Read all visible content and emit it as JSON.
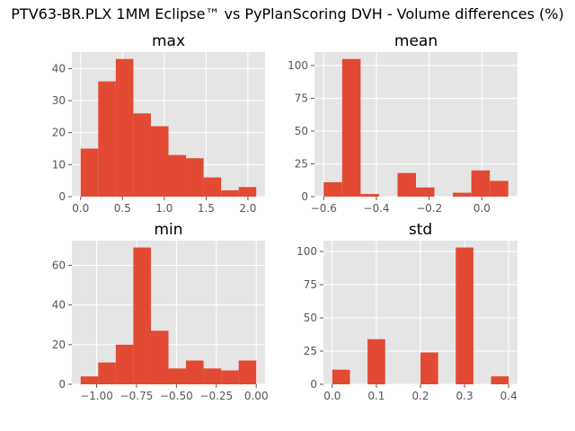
{
  "figure": {
    "suptitle": "PTV63-BR.PLX 1MM Eclipse™ vs PyPlanScoring DVH - Volume differences (%)"
  },
  "chart_data": [
    {
      "type": "bar",
      "title": "max",
      "bin_edges": [
        0.0,
        0.21,
        0.42,
        0.63,
        0.84,
        1.05,
        1.26,
        1.47,
        1.68,
        1.89,
        2.1
      ],
      "values": [
        15,
        36,
        43,
        26,
        22,
        13,
        12,
        6,
        2,
        3
      ],
      "xlim": [
        -0.105,
        2.205
      ],
      "ylim": [
        0,
        45.15
      ],
      "xticks": [
        0.0,
        0.5,
        1.0,
        1.5,
        2.0
      ],
      "xtick_labels": [
        "0.0",
        "0.5",
        "1.0",
        "1.5",
        "2.0"
      ],
      "yticks": [
        0,
        10,
        20,
        30,
        40
      ],
      "ytick_labels": [
        "0",
        "10",
        "20",
        "30",
        "40"
      ],
      "xlabel": "",
      "ylabel": "",
      "grid": true
    },
    {
      "type": "bar",
      "title": "mean",
      "bin_edges": [
        -0.6,
        -0.53,
        -0.46,
        -0.39,
        -0.32,
        -0.25,
        -0.18,
        -0.11,
        -0.04,
        0.03,
        0.1
      ],
      "values": [
        11,
        105,
        2,
        0,
        18,
        7,
        0,
        3,
        20,
        12
      ],
      "xlim": [
        -0.635,
        0.135
      ],
      "ylim": [
        0,
        110.25
      ],
      "xticks": [
        -0.6,
        -0.4,
        -0.2,
        0.0
      ],
      "xtick_labels": [
        "−0.6",
        "−0.4",
        "−0.2",
        "0.0"
      ],
      "yticks": [
        0,
        25,
        50,
        75,
        100
      ],
      "ytick_labels": [
        "0",
        "25",
        "50",
        "75",
        "100"
      ],
      "xlabel": "",
      "ylabel": "",
      "grid": true
    },
    {
      "type": "bar",
      "title": "min",
      "bin_edges": [
        -1.1,
        -0.99,
        -0.88,
        -0.77,
        -0.66,
        -0.55,
        -0.44,
        -0.33,
        -0.22,
        -0.11,
        0.0
      ],
      "values": [
        4,
        11,
        20,
        69,
        27,
        8,
        12,
        8,
        7,
        12
      ],
      "xlim": [
        -1.155,
        0.055
      ],
      "ylim": [
        0,
        72.45
      ],
      "xticks": [
        -1.0,
        -0.75,
        -0.5,
        -0.25,
        0.0
      ],
      "xtick_labels": [
        "−1.00",
        "−0.75",
        "−0.50",
        "−0.25",
        "0.00"
      ],
      "yticks": [
        0,
        20,
        40,
        60
      ],
      "ytick_labels": [
        "0",
        "20",
        "40",
        "60"
      ],
      "xlabel": "",
      "ylabel": "",
      "grid": true
    },
    {
      "type": "bar",
      "title": "std",
      "bin_edges": [
        0.0,
        0.04,
        0.08,
        0.12,
        0.16,
        0.2,
        0.24,
        0.28,
        0.32,
        0.36,
        0.4
      ],
      "values": [
        11,
        0,
        34,
        0,
        0,
        24,
        0,
        103,
        0,
        6
      ],
      "xlim": [
        -0.02,
        0.42
      ],
      "ylim": [
        0,
        108.15
      ],
      "xticks": [
        0.0,
        0.1,
        0.2,
        0.3,
        0.4
      ],
      "xtick_labels": [
        "0.0",
        "0.1",
        "0.2",
        "0.3",
        "0.4"
      ],
      "yticks": [
        0,
        25,
        50,
        75,
        100
      ],
      "ytick_labels": [
        "0",
        "25",
        "50",
        "75",
        "100"
      ],
      "xlabel": "",
      "ylabel": "",
      "grid": true
    }
  ],
  "colors": {
    "bar": "#e24a33",
    "axes_bg": "#e5e5e5",
    "grid": "#ffffff",
    "tick_label": "#555555",
    "title": "#000000"
  }
}
